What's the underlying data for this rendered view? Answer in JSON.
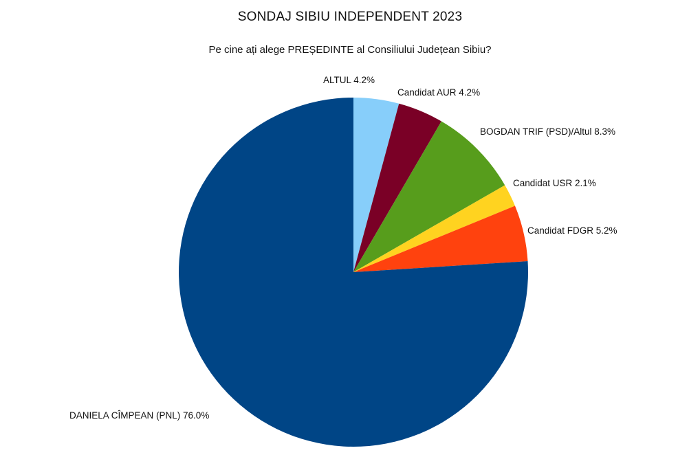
{
  "chart_data": {
    "type": "pie",
    "title": "SONDAJ SIBIU INDEPENDENT 2023",
    "subtitle": "Pe cine ați alege PREȘEDINTE al Consiliului Județean Sibiu?",
    "slices": [
      {
        "name": "ALTUL",
        "value": 4.2,
        "label": "ALTUL 4.2%",
        "color": "#87CEFA"
      },
      {
        "name": "Candidat AUR",
        "value": 4.2,
        "label": "Candidat AUR 4.2%",
        "color": "#7A0026"
      },
      {
        "name": "BOGDAN TRIF (PSD)/Altul",
        "value": 8.3,
        "label": "BOGDAN TRIF (PSD)/Altul 8.3%",
        "color": "#579D1C"
      },
      {
        "name": "Candidat USR",
        "value": 2.1,
        "label": "Candidat USR 2.1%",
        "color": "#FFD320"
      },
      {
        "name": "Candidat FDGR",
        "value": 5.2,
        "label": "Candidat FDGR 5.2%",
        "color": "#FF420E"
      },
      {
        "name": "DANIELA CÎMPEAN (PNL)",
        "value": 76.0,
        "label": "DANIELA CÎMPEAN (PNL) 76.0%",
        "color": "#004586"
      }
    ]
  }
}
